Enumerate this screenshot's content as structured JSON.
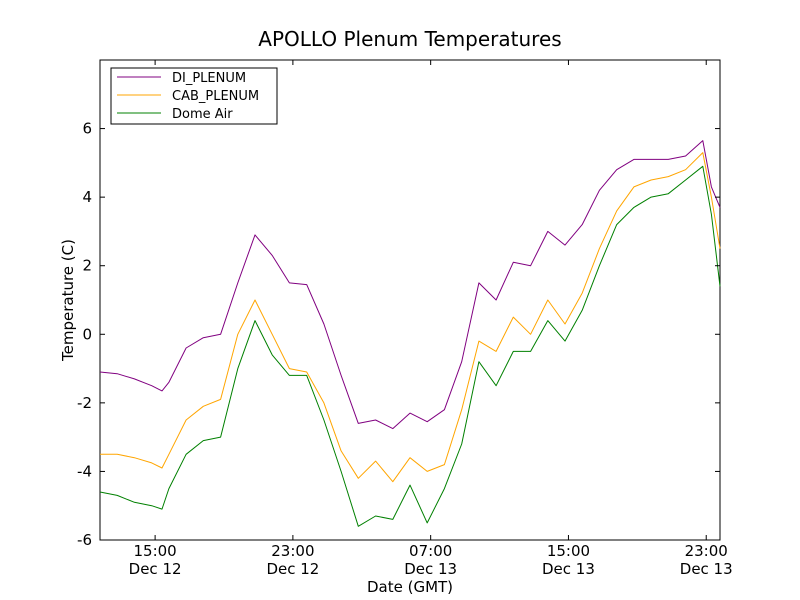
{
  "chart_data": {
    "type": "line",
    "title": "APOLLO Plenum Temperatures",
    "xlabel": "Date (GMT)",
    "ylabel": "Temperature (C)",
    "x_unit": "hours since Dec 12 11:00 GMT",
    "xlim": [
      0,
      36
    ],
    "ylim": [
      -6,
      8
    ],
    "grid": false,
    "legend_position": "top-left",
    "y_ticks": [
      {
        "value": -6,
        "label": "-6"
      },
      {
        "value": -4,
        "label": "-4"
      },
      {
        "value": -2,
        "label": "-2"
      },
      {
        "value": 0,
        "label": "0"
      },
      {
        "value": 2,
        "label": "2"
      },
      {
        "value": 4,
        "label": "4"
      },
      {
        "value": 6,
        "label": "6"
      }
    ],
    "x_ticks": [
      {
        "value": 3.2,
        "time": "15:00",
        "date": "Dec 12"
      },
      {
        "value": 11.2,
        "time": "23:00",
        "date": "Dec 12"
      },
      {
        "value": 19.2,
        "time": "07:00",
        "date": "Dec 13"
      },
      {
        "value": 27.2,
        "time": "15:00",
        "date": "Dec 13"
      },
      {
        "value": 35.2,
        "time": "23:00",
        "date": "Dec 13"
      }
    ],
    "x": [
      0,
      1,
      2,
      3,
      3.6,
      4,
      5,
      6,
      7,
      8,
      9,
      10,
      11,
      12,
      13,
      14,
      15,
      16,
      17,
      18,
      19,
      20,
      21,
      22,
      23,
      24,
      25,
      26,
      27,
      28,
      29,
      30,
      31,
      32,
      33,
      34,
      35,
      35.5,
      36
    ],
    "series": [
      {
        "name": "DI_PLENUM",
        "color": "#800080",
        "values": [
          -1.1,
          -1.15,
          -1.3,
          -1.5,
          -1.65,
          -1.4,
          -0.4,
          -0.1,
          0.0,
          1.5,
          2.9,
          2.3,
          1.5,
          1.45,
          0.3,
          -1.2,
          -2.6,
          -2.5,
          -2.75,
          -2.3,
          -2.55,
          -2.2,
          -0.8,
          1.5,
          1.0,
          2.1,
          2.0,
          3.0,
          2.6,
          3.2,
          4.2,
          4.8,
          5.1,
          5.1,
          5.1,
          5.2,
          5.65,
          4.3,
          3.7
        ]
      },
      {
        "name": "CAB_PLENUM",
        "color": "#ffa500",
        "values": [
          -3.5,
          -3.5,
          -3.6,
          -3.75,
          -3.9,
          -3.5,
          -2.5,
          -2.1,
          -1.9,
          0.0,
          1.0,
          0.0,
          -1.0,
          -1.1,
          -2.0,
          -3.4,
          -4.2,
          -3.7,
          -4.3,
          -3.6,
          -4.0,
          -3.8,
          -2.2,
          -0.2,
          -0.5,
          0.5,
          0.0,
          1.0,
          0.3,
          1.2,
          2.5,
          3.6,
          4.3,
          4.5,
          4.6,
          4.8,
          5.3,
          4.0,
          2.5
        ]
      },
      {
        "name": "Dome Air",
        "color": "#008000",
        "values": [
          -4.6,
          -4.7,
          -4.9,
          -5.0,
          -5.1,
          -4.5,
          -3.5,
          -3.1,
          -3.0,
          -1.0,
          0.4,
          -0.6,
          -1.2,
          -1.2,
          -2.5,
          -4.0,
          -5.6,
          -5.3,
          -5.4,
          -4.4,
          -5.5,
          -4.5,
          -3.2,
          -0.8,
          -1.5,
          -0.5,
          -0.5,
          0.4,
          -0.2,
          0.7,
          2.0,
          3.2,
          3.7,
          4.0,
          4.1,
          4.5,
          4.9,
          3.5,
          1.4
        ]
      }
    ]
  }
}
